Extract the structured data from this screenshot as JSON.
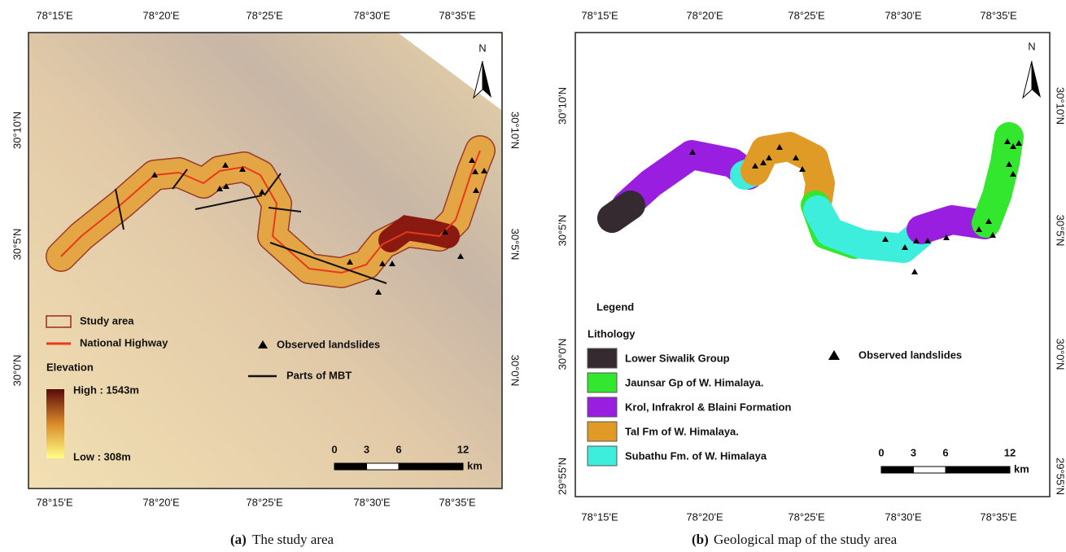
{
  "panel_a": {
    "north": "N",
    "lon_labels": [
      "78°15'E",
      "78°20'E",
      "78°25'E",
      "78°30'E",
      "78°35'E"
    ],
    "lat_labels": [
      "30°10'N",
      "30°5'N",
      "30°0'N"
    ],
    "legend": {
      "study_area": "Study area",
      "highway": "National Highway",
      "elevation": "Elevation",
      "high": "High : 1543m",
      "low": "Low : 308m",
      "landslides": "Observed landslides",
      "mbt": "Parts of MBT"
    },
    "scale": {
      "ticks": [
        "0",
        "3",
        "6",
        "12"
      ],
      "unit": "km"
    },
    "caption": {
      "label": "(a)",
      "text": "The study area"
    }
  },
  "panel_b": {
    "north": "N",
    "lon_labels": [
      "78°15'E",
      "78°20'E",
      "78°25'E",
      "78°30'E",
      "78°35'E"
    ],
    "lat_labels": [
      "30°10'N",
      "30°5'N",
      "30°0'N",
      "29°55'N"
    ],
    "legend": {
      "title": "Legend",
      "subtitle": "Lithology",
      "items": [
        {
          "label": "Lower Siwalik Group",
          "color": "#352a30"
        },
        {
          "label": "Jaunsar Gp of W. Himalaya.",
          "color": "#33e62e"
        },
        {
          "label": "Krol, Infrakrol & Blaini Formation",
          "color": "#9a1ee0"
        },
        {
          "label": "Tal Fm of W. Himalaya.",
          "color": "#e09a26"
        },
        {
          "label": "Subathu Fm. of W. Himalaya",
          "color": "#3deedc"
        }
      ],
      "landslides": "Observed landslides"
    },
    "scale": {
      "ticks": [
        "0",
        "3",
        "6",
        "12"
      ],
      "unit": "km"
    },
    "caption": {
      "label": "(b)",
      "text": "Geological map of the study area"
    }
  }
}
